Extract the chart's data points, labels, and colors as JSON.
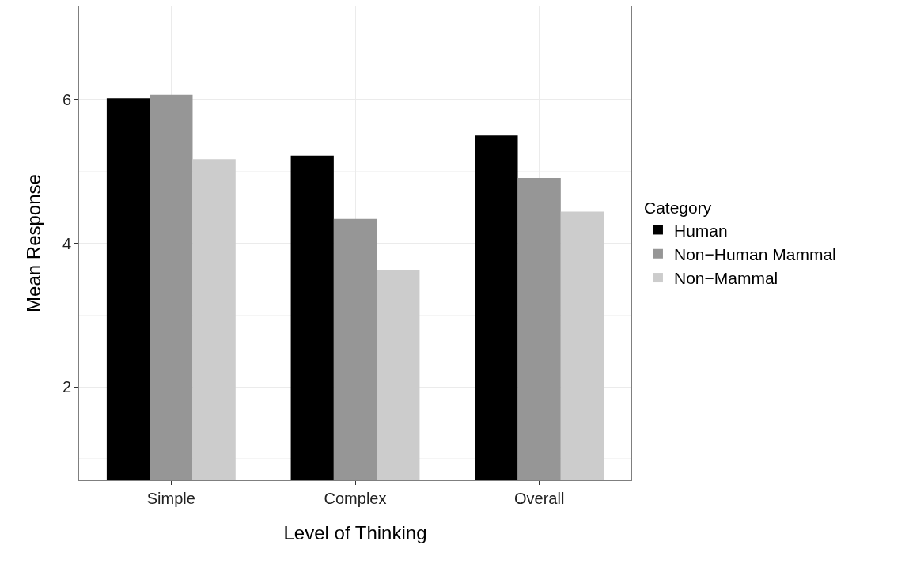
{
  "chart_data": {
    "type": "bar",
    "xlabel": "Level of Thinking",
    "ylabel": "Mean Response",
    "legend_title": "Category",
    "categories": [
      "Simple",
      "Complex",
      "Overall"
    ],
    "series": [
      {
        "name": "Human",
        "color": "#000000",
        "values": [
          6.02,
          5.22,
          5.5
        ]
      },
      {
        "name": "Non−Human Mammal",
        "color": "#969696",
        "values": [
          6.07,
          4.34,
          4.91
        ]
      },
      {
        "name": "Non−Mammal",
        "color": "#cccccc",
        "values": [
          5.17,
          3.63,
          4.44
        ]
      }
    ],
    "ylim": [
      0.7,
      7.3
    ],
    "yticks": [
      2,
      4,
      6
    ],
    "grid": true,
    "legend": "right"
  }
}
